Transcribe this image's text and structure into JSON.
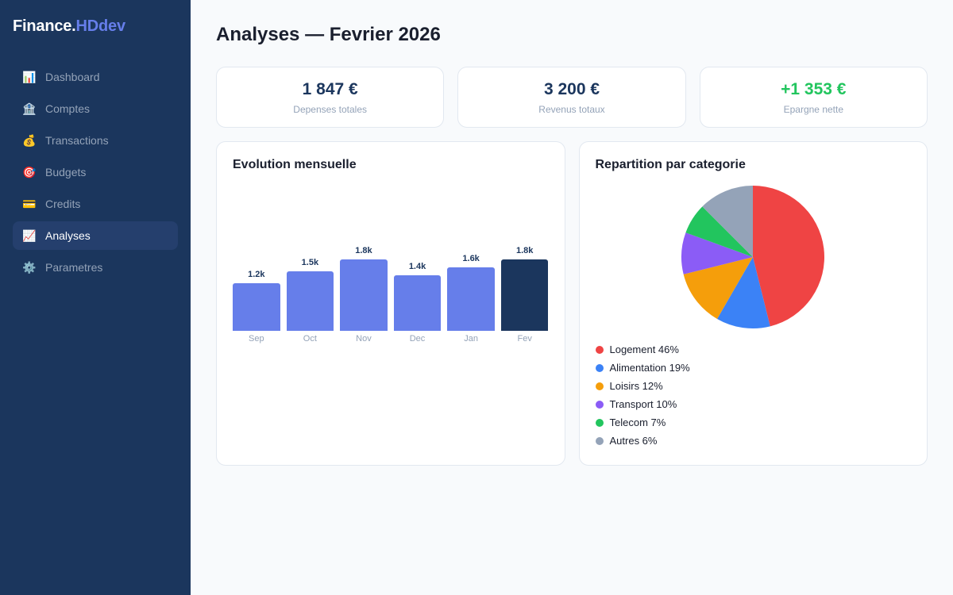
{
  "brand": {
    "name": "Finance.",
    "accent": "HDdev"
  },
  "sidebar": {
    "items": [
      {
        "icon": "📊",
        "icon_name": "bar-chart-icon",
        "label": "Dashboard",
        "active": false
      },
      {
        "icon": "🏦",
        "icon_name": "bank-icon",
        "label": "Comptes",
        "active": false
      },
      {
        "icon": "💰",
        "icon_name": "money-bag-icon",
        "label": "Transactions",
        "active": false
      },
      {
        "icon": "🎯",
        "icon_name": "target-icon",
        "label": "Budgets",
        "active": false
      },
      {
        "icon": "💳",
        "icon_name": "credit-card-icon",
        "label": "Credits",
        "active": false
      },
      {
        "icon": "📈",
        "icon_name": "trend-chart-icon",
        "label": "Analyses",
        "active": true
      },
      {
        "icon": "⚙️",
        "icon_name": "gear-icon",
        "label": "Parametres",
        "active": false
      }
    ]
  },
  "page": {
    "title": "Analyses — Fevrier 2026"
  },
  "stats": [
    {
      "value": "1 847 €",
      "label": "Depenses totales"
    },
    {
      "value": "3 200 €",
      "label": "Revenus totaux"
    },
    {
      "value": "+1 353 €",
      "label": "Epargne nette",
      "color": "#22c55e"
    }
  ],
  "monthly_chart": {
    "title": "Evolution mensuelle"
  },
  "category_chart": {
    "title": "Repartition par categorie"
  },
  "colors": {
    "primary": "#1b365d",
    "accent": "#667eea",
    "positive": "#22c55e"
  },
  "chart_data": [
    {
      "type": "bar",
      "title": "Evolution mensuelle",
      "categories": [
        "Sep",
        "Oct",
        "Nov",
        "Dec",
        "Jan",
        "Fev"
      ],
      "values": [
        1200,
        1500,
        1800,
        1400,
        1600,
        1800
      ],
      "labels": [
        "1.2k",
        "1.5k",
        "1.8k",
        "1.4k",
        "1.6k",
        "1.8k"
      ],
      "highlight_index": 5,
      "xlabel": "",
      "ylabel": "",
      "grid": false
    },
    {
      "type": "pie",
      "title": "Repartition par categorie",
      "categories": [
        "Logement",
        "Alimentation",
        "Loisirs",
        "Transport",
        "Telecom",
        "Autres"
      ],
      "values": [
        46,
        19,
        12,
        10,
        7,
        6
      ],
      "legend_labels": [
        "Logement 46%",
        "Alimentation 19%",
        "Loisirs 12%",
        "Transport 10%",
        "Telecom 7%",
        "Autres 6%"
      ],
      "colors": [
        "#ef4444",
        "#3b82f6",
        "#f59e0b",
        "#8b5cf6",
        "#22c55e",
        "#94a3b8"
      ],
      "legend_position": "bottom"
    }
  ]
}
